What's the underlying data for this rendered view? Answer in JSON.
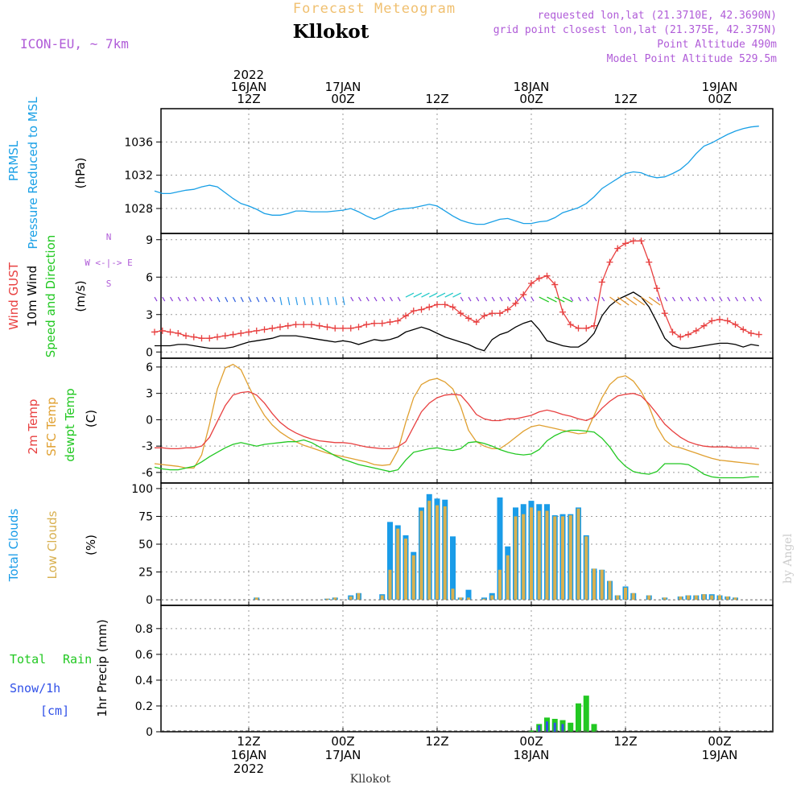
{
  "header": {
    "forecast_title": "Forecast Meteogram",
    "station": "Kllokot",
    "model": "ICON-EU, ~ 7km",
    "requested": "requested lon,lat (21.3710E, 42.3690N)",
    "grid_point": "grid point closest lon,lat (21.375E, 42.375N)",
    "point_alt": "Point Altitude 490m",
    "model_alt": "Model Point Altitude 529.5m",
    "footer_station": "Kllokot",
    "watermark": "by Angel"
  },
  "colors": {
    "pressure": "#1aa0e6",
    "gust": "#e84040",
    "wind": "#000000",
    "temp2m": "#e84040",
    "sfc": "#e0a030",
    "dewpt": "#22c822",
    "total_clouds": "#1a9ce8",
    "low_clouds": "#d8b050",
    "rain": "#22c822",
    "snow": "#3050e8",
    "purple": "#b05cd8",
    "title_orange": "#f0c070"
  },
  "time_axis": {
    "top": [
      {
        "h": 12,
        "lines": [
          "2022",
          "16JAN",
          "12Z"
        ]
      },
      {
        "h": 24,
        "lines": [
          "17JAN",
          "00Z"
        ]
      },
      {
        "h": 36,
        "lines": [
          "12Z"
        ]
      },
      {
        "h": 48,
        "lines": [
          "18JAN",
          "00Z"
        ]
      },
      {
        "h": 60,
        "lines": [
          "12Z"
        ]
      },
      {
        "h": 72,
        "lines": [
          "19JAN",
          "00Z"
        ]
      }
    ],
    "bottom": [
      {
        "h": 12,
        "lines": [
          "12Z",
          "16JAN",
          "2022"
        ]
      },
      {
        "h": 24,
        "lines": [
          "00Z",
          "17JAN"
        ]
      },
      {
        "h": 36,
        "lines": [
          "12Z"
        ]
      },
      {
        "h": 48,
        "lines": [
          "00Z",
          "18JAN"
        ]
      },
      {
        "h": 60,
        "lines": [
          "12Z"
        ]
      },
      {
        "h": 72,
        "lines": [
          "00Z",
          "19JAN"
        ]
      }
    ]
  },
  "chart_data": [
    {
      "type": "line",
      "panel": "pressure",
      "ylabels": [
        "PRMSL",
        "Pressure Reduced to MSL",
        "(hPa)"
      ],
      "yticks": [
        1028,
        1032,
        1036
      ],
      "ylim": [
        1025,
        1040
      ],
      "x_hours": [
        0,
        1,
        2,
        3,
        4,
        5,
        6,
        7,
        8,
        9,
        10,
        11,
        12,
        13,
        14,
        15,
        16,
        17,
        18,
        19,
        20,
        21,
        22,
        23,
        24,
        25,
        26,
        27,
        28,
        29,
        30,
        31,
        32,
        33,
        34,
        35,
        36,
        37,
        38,
        39,
        40,
        41,
        42,
        43,
        44,
        45,
        46,
        47,
        48,
        49,
        50,
        51,
        52,
        53,
        54,
        55,
        56,
        57,
        58,
        59,
        60,
        61,
        62,
        63,
        64,
        65,
        66,
        67,
        68,
        69,
        70,
        71,
        72,
        73,
        74,
        75,
        76,
        77
      ],
      "series": [
        {
          "values": [
            1030.1,
            1029.8,
            1029.8,
            1030.0,
            1030.2,
            1030.3,
            1030.6,
            1030.8,
            1030.6,
            1029.9,
            1029.2,
            1028.6,
            1028.3,
            1027.9,
            1027.4,
            1027.2,
            1027.2,
            1027.4,
            1027.7,
            1027.7,
            1027.6,
            1027.6,
            1027.6,
            1027.7,
            1027.8,
            1028.0,
            1027.6,
            1027.1,
            1026.7,
            1027.1,
            1027.6,
            1027.9,
            1028.0,
            1028.1,
            1028.3,
            1028.5,
            1028.3,
            1027.7,
            1027.1,
            1026.6,
            1026.3,
            1026.1,
            1026.1,
            1026.4,
            1026.7,
            1026.8,
            1026.5,
            1026.2,
            1026.2,
            1026.4,
            1026.5,
            1026.9,
            1027.5,
            1027.8,
            1028.1,
            1028.6,
            1029.4,
            1030.4,
            1031.0,
            1031.6,
            1032.2,
            1032.4,
            1032.3,
            1031.9,
            1031.7,
            1031.8,
            1032.2,
            1032.7,
            1033.5,
            1034.6,
            1035.5,
            1035.9,
            1036.4,
            1036.9,
            1037.3,
            1037.6,
            1037.8,
            1037.9
          ]
        }
      ]
    },
    {
      "type": "line",
      "panel": "wind",
      "ylabels": [
        "Wind GUST",
        "10m Wind",
        "Speed and Direction",
        "(m/s)"
      ],
      "compass": [
        "N",
        "W <-|-> E",
        "S"
      ],
      "yticks": [
        0,
        3,
        6,
        9
      ],
      "ylim": [
        -0.5,
        9.5
      ],
      "x_hours": [
        0,
        1,
        2,
        3,
        4,
        5,
        6,
        7,
        8,
        9,
        10,
        11,
        12,
        13,
        14,
        15,
        16,
        17,
        18,
        19,
        20,
        21,
        22,
        23,
        24,
        25,
        26,
        27,
        28,
        29,
        30,
        31,
        32,
        33,
        34,
        35,
        36,
        37,
        38,
        39,
        40,
        41,
        42,
        43,
        44,
        45,
        46,
        47,
        48,
        49,
        50,
        51,
        52,
        53,
        54,
        55,
        56,
        57,
        58,
        59,
        60,
        61,
        62,
        63,
        64,
        65,
        66,
        67,
        68,
        69,
        70,
        71,
        72,
        73,
        74,
        75,
        76,
        77
      ],
      "series": [
        {
          "name": "Wind GUST",
          "marker": "plus",
          "values": [
            1.6,
            1.7,
            1.6,
            1.5,
            1.3,
            1.2,
            1.1,
            1.1,
            1.2,
            1.3,
            1.4,
            1.5,
            1.6,
            1.7,
            1.8,
            1.9,
            2.0,
            2.1,
            2.2,
            2.2,
            2.2,
            2.1,
            2.0,
            1.9,
            1.9,
            1.9,
            2.0,
            2.2,
            2.3,
            2.3,
            2.4,
            2.5,
            2.9,
            3.3,
            3.4,
            3.6,
            3.8,
            3.8,
            3.6,
            3.1,
            2.7,
            2.4,
            2.9,
            3.1,
            3.1,
            3.4,
            3.9,
            4.6,
            5.5,
            5.9,
            6.1,
            5.4,
            3.2,
            2.2,
            1.9,
            1.9,
            2.1,
            5.6,
            7.2,
            8.3,
            8.7,
            8.9,
            8.9,
            7.2,
            5.1,
            3.1,
            1.6,
            1.2,
            1.4,
            1.7,
            2.1,
            2.5,
            2.6,
            2.5,
            2.2,
            1.8,
            1.5,
            1.4
          ]
        },
        {
          "name": "10m Wind",
          "values": [
            0.5,
            0.5,
            0.5,
            0.6,
            0.6,
            0.5,
            0.4,
            0.3,
            0.3,
            0.3,
            0.4,
            0.6,
            0.8,
            0.9,
            1.0,
            1.1,
            1.3,
            1.3,
            1.3,
            1.2,
            1.1,
            1.0,
            0.9,
            0.8,
            0.9,
            0.8,
            0.6,
            0.8,
            1.0,
            0.9,
            1.0,
            1.2,
            1.6,
            1.8,
            2.0,
            1.8,
            1.5,
            1.2,
            1.0,
            0.8,
            0.6,
            0.3,
            0.1,
            1.0,
            1.4,
            1.6,
            2.0,
            2.3,
            2.5,
            1.8,
            0.9,
            0.7,
            0.5,
            0.4,
            0.4,
            0.8,
            1.5,
            2.9,
            3.7,
            4.2,
            4.5,
            4.8,
            4.4,
            3.6,
            2.4,
            1.1,
            0.5,
            0.3,
            0.3,
            0.4,
            0.5,
            0.6,
            0.7,
            0.7,
            0.6,
            0.4,
            0.6,
            0.5
          ]
        }
      ]
    },
    {
      "type": "line",
      "panel": "temperature",
      "ylabels": [
        "2m Temp",
        "SFC Temp",
        "dewpt Temp",
        "(C)"
      ],
      "yticks": [
        -6,
        -3,
        0,
        3,
        6
      ],
      "ylim": [
        -7.2,
        7.0
      ],
      "x_hours": [
        0,
        1,
        2,
        3,
        4,
        5,
        6,
        7,
        8,
        9,
        10,
        11,
        12,
        13,
        14,
        15,
        16,
        17,
        18,
        19,
        20,
        21,
        22,
        23,
        24,
        25,
        26,
        27,
        28,
        29,
        30,
        31,
        32,
        33,
        34,
        35,
        36,
        37,
        38,
        39,
        40,
        41,
        42,
        43,
        44,
        45,
        46,
        47,
        48,
        49,
        50,
        51,
        52,
        53,
        54,
        55,
        56,
        57,
        58,
        59,
        60,
        61,
        62,
        63,
        64,
        65,
        66,
        67,
        68,
        69,
        70,
        71,
        72,
        73,
        74,
        75,
        76,
        77
      ],
      "series": [
        {
          "name": "2m Temp",
          "values": [
            -3.2,
            -3.2,
            -3.3,
            -3.3,
            -3.2,
            -3.2,
            -3.0,
            -2.0,
            -0.2,
            1.6,
            2.8,
            3.1,
            3.2,
            2.8,
            1.9,
            0.7,
            -0.3,
            -1.0,
            -1.5,
            -1.9,
            -2.2,
            -2.4,
            -2.5,
            -2.6,
            -2.6,
            -2.7,
            -2.9,
            -3.1,
            -3.2,
            -3.3,
            -3.3,
            -3.1,
            -2.5,
            -0.8,
            0.9,
            1.9,
            2.5,
            2.8,
            2.9,
            2.8,
            1.8,
            0.6,
            0.1,
            -0.1,
            -0.1,
            0.1,
            0.1,
            0.3,
            0.5,
            0.9,
            1.1,
            0.9,
            0.6,
            0.4,
            0.1,
            -0.1,
            0.3,
            1.3,
            2.1,
            2.7,
            2.9,
            3.0,
            2.7,
            1.8,
            0.7,
            -0.5,
            -1.3,
            -2.0,
            -2.5,
            -2.8,
            -3.0,
            -3.1,
            -3.1,
            -3.1,
            -3.2,
            -3.2,
            -3.2,
            -3.3
          ]
        },
        {
          "name": "SFC Temp",
          "values": [
            -5.0,
            -5.1,
            -5.2,
            -5.3,
            -5.5,
            -5.5,
            -4.0,
            -0.5,
            3.5,
            5.9,
            6.3,
            5.7,
            3.8,
            2.0,
            0.5,
            -0.6,
            -1.4,
            -2.0,
            -2.5,
            -2.9,
            -3.2,
            -3.5,
            -3.8,
            -4.0,
            -4.2,
            -4.4,
            -4.6,
            -4.8,
            -5.1,
            -5.2,
            -5.1,
            -3.5,
            -0.3,
            2.5,
            4.0,
            4.5,
            4.7,
            4.3,
            3.5,
            1.5,
            -1.2,
            -2.5,
            -3.0,
            -3.3,
            -3.3,
            -2.7,
            -2.0,
            -1.3,
            -0.8,
            -0.6,
            -0.8,
            -1.0,
            -1.2,
            -1.4,
            -1.6,
            -1.5,
            0.5,
            2.5,
            4.0,
            4.8,
            5.0,
            4.4,
            3.2,
            1.5,
            -0.8,
            -2.3,
            -3.0,
            -3.2,
            -3.5,
            -3.8,
            -4.1,
            -4.4,
            -4.6,
            -4.7,
            -4.8,
            -4.9,
            -5.0,
            -5.1
          ]
        },
        {
          "name": "dewpt Temp",
          "values": [
            -5.4,
            -5.6,
            -5.7,
            -5.7,
            -5.5,
            -5.3,
            -4.8,
            -4.2,
            -3.7,
            -3.2,
            -2.8,
            -2.6,
            -2.8,
            -3.0,
            -2.8,
            -2.7,
            -2.6,
            -2.5,
            -2.5,
            -2.3,
            -2.6,
            -3.1,
            -3.6,
            -4.1,
            -4.5,
            -4.8,
            -5.1,
            -5.3,
            -5.5,
            -5.7,
            -5.9,
            -5.7,
            -4.6,
            -3.7,
            -3.5,
            -3.3,
            -3.2,
            -3.4,
            -3.5,
            -3.3,
            -2.6,
            -2.5,
            -2.7,
            -3.0,
            -3.4,
            -3.7,
            -3.9,
            -4.0,
            -3.9,
            -3.4,
            -2.4,
            -1.8,
            -1.4,
            -1.2,
            -1.2,
            -1.3,
            -1.4,
            -2.1,
            -3.1,
            -4.4,
            -5.3,
            -5.9,
            -6.1,
            -6.2,
            -5.9,
            -5.0,
            -5.0,
            -5.0,
            -5.1,
            -5.6,
            -6.2,
            -6.5,
            -6.6,
            -6.6,
            -6.6,
            -6.6,
            -6.5,
            -6.5
          ]
        }
      ]
    },
    {
      "type": "bar",
      "panel": "clouds",
      "ylabels": [
        "Total Clouds",
        "Low Clouds",
        "(%)"
      ],
      "yticks": [
        0,
        25,
        50,
        75,
        100
      ],
      "ylim": [
        -5,
        105
      ],
      "x_hours": [
        0,
        1,
        2,
        3,
        4,
        5,
        6,
        7,
        8,
        9,
        10,
        11,
        12,
        13,
        14,
        15,
        16,
        17,
        18,
        19,
        20,
        21,
        22,
        23,
        24,
        25,
        26,
        27,
        28,
        29,
        30,
        31,
        32,
        33,
        34,
        35,
        36,
        37,
        38,
        39,
        40,
        41,
        42,
        43,
        44,
        45,
        46,
        47,
        48,
        49,
        50,
        51,
        52,
        53,
        54,
        55,
        56,
        57,
        58,
        59,
        60,
        61,
        62,
        63,
        64,
        65,
        66,
        67,
        68,
        69,
        70,
        71,
        72,
        73,
        74,
        75,
        76,
        77
      ],
      "series": [
        {
          "name": "Total Clouds",
          "values": [
            0,
            0,
            0,
            0,
            0,
            0,
            0,
            0,
            0,
            0,
            0,
            0,
            0,
            2,
            0,
            0,
            0,
            0,
            0,
            0,
            0,
            0,
            1,
            2,
            0,
            4,
            6,
            0,
            0,
            5,
            70,
            67,
            58,
            43,
            83,
            95,
            91,
            90,
            57,
            2,
            9,
            0,
            2,
            6,
            92,
            48,
            83,
            86,
            89,
            86,
            86,
            76,
            77,
            77,
            83,
            58,
            28,
            27,
            17,
            4,
            12,
            6,
            0,
            4,
            0,
            2,
            0,
            3,
            4,
            4,
            5,
            5,
            4,
            3,
            2,
            0,
            0,
            0
          ]
        },
        {
          "name": "Low Clouds",
          "values": [
            0,
            0,
            0,
            0,
            0,
            0,
            0,
            0,
            0,
            0,
            0,
            0,
            0,
            2,
            0,
            0,
            0,
            0,
            0,
            0,
            0,
            0,
            1,
            2,
            0,
            3,
            6,
            0,
            0,
            4,
            27,
            64,
            55,
            40,
            80,
            89,
            85,
            84,
            10,
            2,
            2,
            0,
            1,
            4,
            27,
            40,
            75,
            77,
            83,
            80,
            80,
            75,
            75,
            76,
            82,
            57,
            28,
            27,
            17,
            4,
            11,
            6,
            0,
            4,
            0,
            2,
            0,
            3,
            4,
            4,
            5,
            4,
            4,
            3,
            2,
            0,
            0,
            0
          ]
        }
      ]
    },
    {
      "type": "bar",
      "panel": "precip",
      "ylabels": [
        "1hr Precip (mm)"
      ],
      "legend_labels": [
        "Total",
        "Rain",
        "Snow/1h",
        "[cm]"
      ],
      "yticks": [
        0,
        0.2,
        0.4,
        0.6,
        0.8
      ],
      "tick_labels": [
        "0",
        "0.2",
        "0.4",
        "0.6",
        "0.8"
      ],
      "ylim": [
        0,
        0.98
      ],
      "x_hours": [
        48,
        49,
        50,
        51,
        52,
        53,
        54,
        55,
        56,
        57
      ],
      "series": [
        {
          "name": "Rain",
          "values": [
            0.01,
            0.06,
            0.11,
            0.1,
            0.09,
            0.07,
            0.22,
            0.28,
            0.06,
            0.0
          ]
        },
        {
          "name": "Snow",
          "values": [
            0.0,
            0.05,
            0.08,
            0.07,
            0.06,
            0.0,
            0.0,
            0.0,
            0.0,
            0.0
          ]
        }
      ]
    }
  ]
}
